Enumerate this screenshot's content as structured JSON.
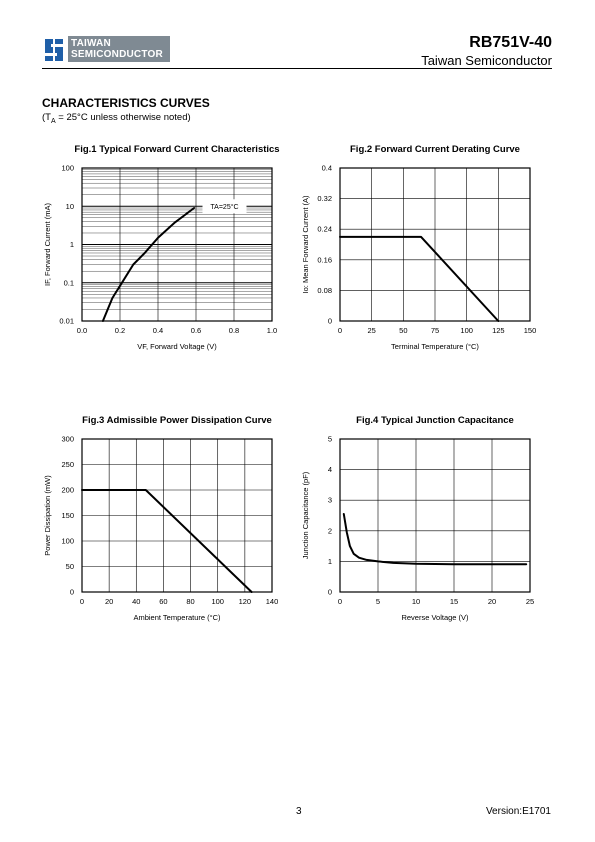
{
  "header": {
    "logo_line1": "TAIWAN",
    "logo_line2": "SEMICONDUCTOR",
    "part_number": "RB751V-40",
    "company": "Taiwan Semiconductor"
  },
  "section": {
    "title": "CHARACTERISTICS CURVES",
    "subtitle_prefix": "(T",
    "subtitle_sub": "A",
    "subtitle_rest": " = 25°C unless otherwise noted)"
  },
  "footer": {
    "page": "3",
    "version": "Version:E1701"
  },
  "colors": {
    "logo_gray": "#7f8a93",
    "logo_blue": "#1f5fa8",
    "line": "#000000"
  },
  "chart_data": [
    {
      "type": "line",
      "title": "Fig.1 Typical Forward Current Characteristics",
      "xlabel": "VF, Forward Voltage (V)",
      "ylabel": "IF, Forward Current (mA)",
      "xscale": "linear",
      "yscale": "log",
      "xlim": [
        0,
        1.0
      ],
      "ylim": [
        0.01,
        100
      ],
      "xticks": [
        "0.0",
        "0.2",
        "0.4",
        "0.6",
        "0.8",
        "1.0"
      ],
      "yticks": [
        "0.01",
        "0.1",
        "1",
        "10",
        "100"
      ],
      "grid": true,
      "annotation": "TA=25°C",
      "series": [
        {
          "x": [
            0.11,
            0.16,
            0.21,
            0.27,
            0.33,
            0.4,
            0.49,
            0.59
          ],
          "y": [
            0.01,
            0.04,
            0.1,
            0.3,
            0.6,
            1.5,
            3.8,
            9
          ]
        }
      ]
    },
    {
      "type": "line",
      "title": "Fig.2 Forward Current Derating Curve",
      "xlabel": "Terminal Temperature (°C)",
      "ylabel": "Io: Mean Forward Current (A)",
      "xlim": [
        0,
        150
      ],
      "ylim": [
        0,
        0.4
      ],
      "xticks": [
        "0",
        "25",
        "50",
        "75",
        "100",
        "125",
        "150"
      ],
      "yticks": [
        "0",
        "0.08",
        "0.16",
        "0.24",
        "0.32",
        "0.4"
      ],
      "grid": true,
      "series": [
        {
          "x": [
            0,
            64,
            125
          ],
          "y": [
            0.22,
            0.22,
            0
          ]
        }
      ]
    },
    {
      "type": "line",
      "title": "Fig.3 Admissible Power Dissipation Curve",
      "xlabel": "Ambient Temperature (°C)",
      "ylabel": "Power Dissipation (mW)",
      "xlim": [
        0,
        140
      ],
      "ylim": [
        0,
        300
      ],
      "xticks": [
        "0",
        "20",
        "40",
        "60",
        "80",
        "100",
        "120",
        "140"
      ],
      "yticks": [
        "0",
        "50",
        "100",
        "150",
        "200",
        "250",
        "300"
      ],
      "grid": true,
      "series": [
        {
          "x": [
            0,
            47,
            125
          ],
          "y": [
            200,
            200,
            0
          ]
        }
      ]
    },
    {
      "type": "line",
      "title": "Fig.4 Typical Junction Capacitance",
      "xlabel": "Reverse Voltage (V)",
      "ylabel": "Junction Capacitance (pF)",
      "xlim": [
        0,
        25
      ],
      "ylim": [
        0,
        5
      ],
      "xticks": [
        "0",
        "5",
        "10",
        "15",
        "20",
        "25"
      ],
      "yticks": [
        "0",
        "1",
        "2",
        "3",
        "4",
        "5"
      ],
      "grid": true,
      "series": [
        {
          "x": [
            0.5,
            0.9,
            1.3,
            1.8,
            2.5,
            3.5,
            5,
            7,
            10,
            15,
            20,
            24.5
          ],
          "y": [
            2.55,
            1.95,
            1.5,
            1.25,
            1.12,
            1.05,
            1.0,
            0.95,
            0.92,
            0.91,
            0.91,
            0.91
          ]
        }
      ]
    }
  ]
}
